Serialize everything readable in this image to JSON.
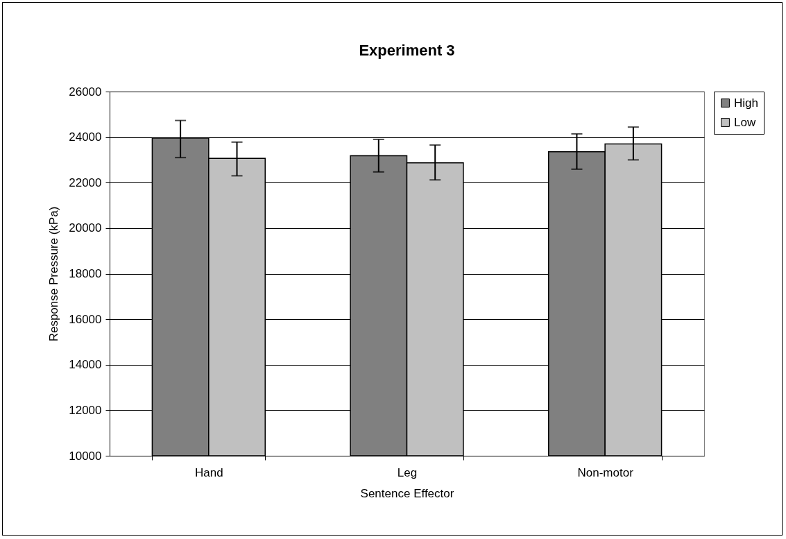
{
  "chart_data": {
    "type": "bar",
    "title": "Experiment 3",
    "xlabel": "Sentence Effector",
    "ylabel": "Response Pressure (kPa)",
    "categories": [
      "Hand",
      "Leg",
      "Non-motor"
    ],
    "series": [
      {
        "name": "High",
        "color": "#808080",
        "values": [
          23960,
          23180,
          23360
        ],
        "errors": [
          [
            23100,
            24730
          ],
          [
            22470,
            23900
          ],
          [
            22590,
            24140
          ]
        ]
      },
      {
        "name": "Low",
        "color": "#c0c0c0",
        "values": [
          23070,
          22870,
          23700
        ],
        "errors": [
          [
            22300,
            23780
          ],
          [
            22120,
            23650
          ],
          [
            23000,
            24440
          ]
        ]
      }
    ],
    "ylim": [
      10000,
      26000
    ],
    "yticks": [
      10000,
      12000,
      14000,
      16000,
      18000,
      20000,
      22000,
      24000,
      26000
    ],
    "grid": "y",
    "legend": "right"
  }
}
